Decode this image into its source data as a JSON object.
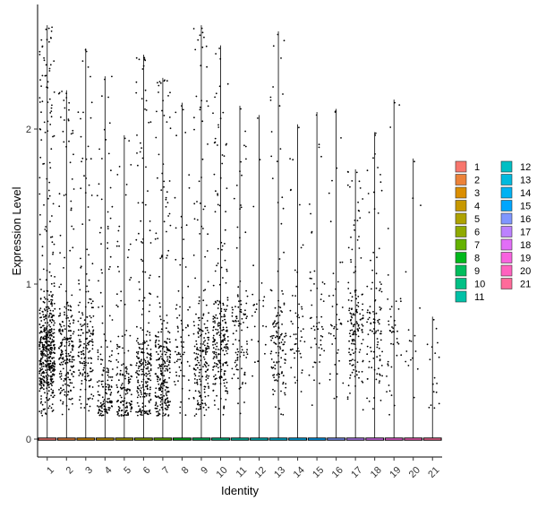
{
  "chart_data": {
    "type": "violin-jitter",
    "title": "",
    "xlabel": "Identity",
    "ylabel": "Expression Level",
    "categories": [
      "1",
      "2",
      "3",
      "4",
      "5",
      "6",
      "7",
      "8",
      "9",
      "10",
      "11",
      "12",
      "13",
      "14",
      "15",
      "16",
      "17",
      "18",
      "19",
      "20",
      "21"
    ],
    "ylim": [
      -0.12,
      2.8
    ],
    "yticks": [
      0,
      1,
      2
    ],
    "max_values": [
      2.67,
      2.25,
      2.52,
      2.34,
      1.96,
      2.48,
      2.33,
      2.17,
      2.67,
      2.54,
      2.15,
      2.09,
      2.63,
      2.03,
      2.11,
      2.13,
      1.74,
      1.98,
      2.19,
      1.81,
      0.79
    ],
    "cluster_center": [
      0.55,
      0.55,
      0.6,
      0.3,
      0.28,
      0.4,
      0.4,
      0.55,
      0.5,
      0.6,
      0.65,
      0.8,
      0.6,
      0.7,
      0.75,
      0.7,
      0.7,
      0.65,
      0.6,
      0.7,
      0.4
    ],
    "point_density": [
      1.0,
      0.45,
      0.35,
      0.3,
      0.28,
      0.45,
      0.5,
      0.15,
      0.4,
      0.45,
      0.2,
      0.05,
      0.25,
      0.1,
      0.1,
      0.08,
      0.3,
      0.2,
      0.08,
      0.03,
      0.03
    ],
    "colors": [
      "#F8766D",
      "#EC8239",
      "#DB8E00",
      "#C79800",
      "#AEA200",
      "#8FAA00",
      "#64B200",
      "#00B81B",
      "#00BD5C",
      "#00C085",
      "#00C1A7",
      "#00BFC4",
      "#00BADE",
      "#00B2F3",
      "#00A6FF",
      "#7F96FF",
      "#BC81FF",
      "#E26EF7",
      "#F863DF",
      "#FF62BF",
      "#FF6A9A"
    ],
    "legend": {
      "position": "right",
      "entries": [
        "1",
        "2",
        "3",
        "4",
        "5",
        "6",
        "7",
        "8",
        "9",
        "10",
        "11",
        "12",
        "13",
        "14",
        "15",
        "16",
        "17",
        "18",
        "19",
        "20",
        "21"
      ]
    },
    "grid": false
  }
}
